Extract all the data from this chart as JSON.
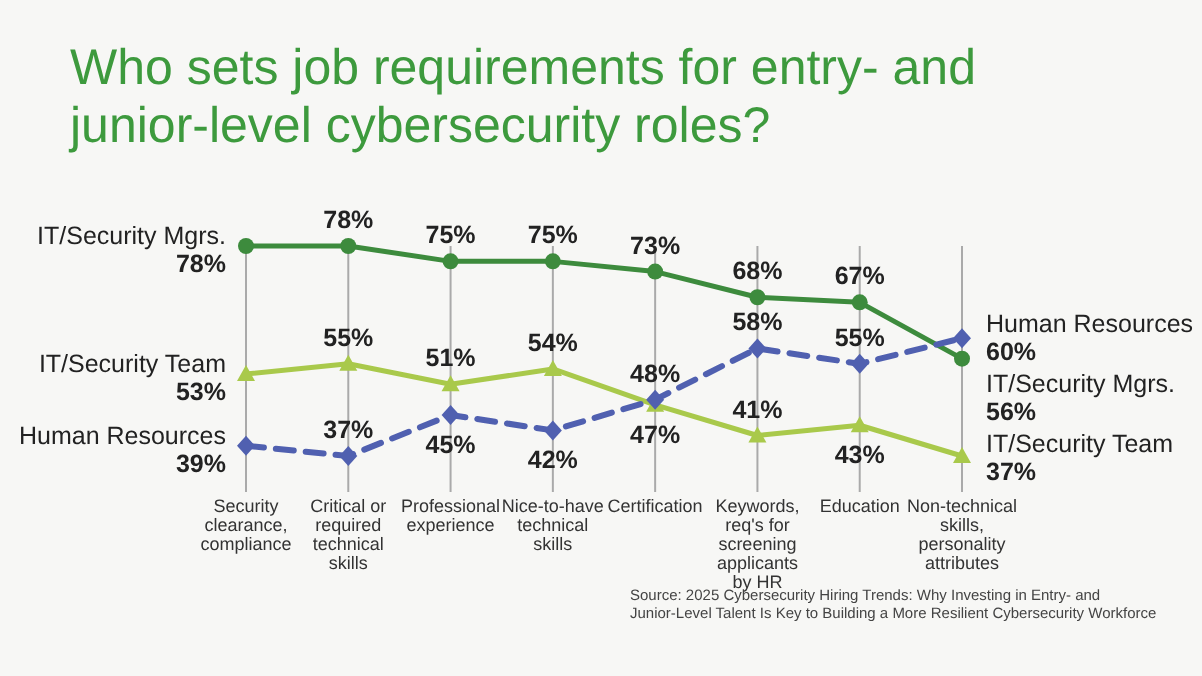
{
  "chart_data": {
    "type": "line",
    "title": "Who sets job requirements for entry- and junior-level cybersecurity roles?",
    "categories": [
      "Security clearance, compliance",
      "Critical or required technical skills",
      "Professional experience",
      "Nice-to-have technical skills",
      "Certification",
      "Keywords, req's for screening applicants by HR",
      "Education",
      "Non-technical skills, personality attributes"
    ],
    "series": [
      {
        "name": "IT/Security Mgrs.",
        "color": "#3d8b3d",
        "marker": "circle",
        "line_style": "solid",
        "values": [
          78,
          78,
          75,
          75,
          73,
          68,
          67,
          56
        ],
        "value_labels": [
          "78%",
          "78%",
          "75%",
          "75%",
          "73%",
          "68%",
          "67%",
          "56%"
        ]
      },
      {
        "name": "IT/Security Team",
        "color": "#a9c94b",
        "marker": "triangle",
        "line_style": "solid",
        "values": [
          53,
          55,
          51,
          54,
          47,
          41,
          43,
          37
        ],
        "value_labels": [
          "53%",
          "55%",
          "51%",
          "54%",
          "47%",
          "41%",
          "43%",
          "37%"
        ]
      },
      {
        "name": "Human Resources",
        "color": "#5060b0",
        "marker": "diamond",
        "line_style": "dashed",
        "values": [
          39,
          37,
          45,
          42,
          48,
          58,
          55,
          60
        ],
        "value_labels": [
          "39%",
          "37%",
          "45%",
          "42%",
          "48%",
          "58%",
          "55%",
          "60%"
        ]
      }
    ],
    "grid": "x",
    "tick_labels": "x",
    "annotations": [
      "Source: 2025 Cybersecurity Hiring Trends: Why Investing in Entry- and Junior-Level Talent Is Key to Building a More Resilient Cybersecurity Workforce"
    ]
  }
}
